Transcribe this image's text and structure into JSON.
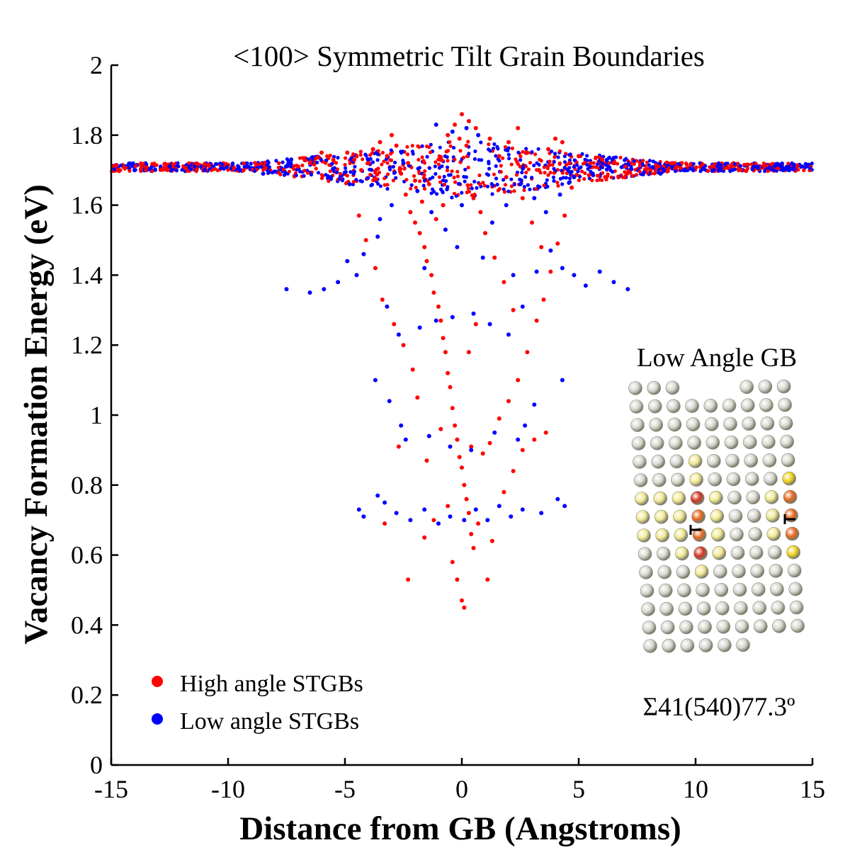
{
  "chart_data": {
    "type": "scatter",
    "title": "<100> Symmetric Tilt Grain Boundaries",
    "xlabel": "Distance from GB (Angstroms)",
    "ylabel": "Vacancy Formation Energy (eV)",
    "xlim": [
      -15,
      15
    ],
    "ylim": [
      0,
      2
    ],
    "xticks": [
      -15,
      -10,
      -5,
      0,
      5,
      10,
      15
    ],
    "xtick_labels": [
      "-15",
      "-10",
      "-5",
      "0",
      "5",
      "10",
      "15"
    ],
    "yticks": [
      0,
      0.2,
      0.4,
      0.6,
      0.8,
      1,
      1.2,
      1.4,
      1.6,
      1.8,
      2
    ],
    "ytick_labels": [
      "0",
      "0.2",
      "0.4",
      "0.6",
      "0.8",
      "1",
      "1.2",
      "1.4",
      "1.6",
      "1.8",
      "2"
    ],
    "bulk_energy": 1.71,
    "series": [
      {
        "name": "High angle STGBs",
        "color": "#ff0000",
        "points": [
          [
            -4.9,
            1.75
          ],
          [
            -4.6,
            1.73
          ],
          [
            -4.3,
            1.7
          ],
          [
            -4.0,
            1.72
          ],
          [
            -3.8,
            1.76
          ],
          [
            -3.5,
            1.78
          ],
          [
            -3.2,
            1.74
          ],
          [
            -3.0,
            1.8
          ],
          [
            -2.8,
            1.77
          ],
          [
            -2.6,
            1.69
          ],
          [
            -2.4,
            1.63
          ],
          [
            -2.2,
            1.58
          ],
          [
            -2.0,
            1.55
          ],
          [
            -1.8,
            1.52
          ],
          [
            -1.6,
            1.48
          ],
          [
            -1.5,
            1.44
          ],
          [
            -1.3,
            1.4
          ],
          [
            -1.2,
            1.35
          ],
          [
            -1.0,
            1.31
          ],
          [
            -0.9,
            1.27
          ],
          [
            -0.8,
            1.22
          ],
          [
            -0.7,
            1.18
          ],
          [
            -0.6,
            1.12
          ],
          [
            -0.5,
            1.08
          ],
          [
            -0.4,
            1.02
          ],
          [
            -0.3,
            0.97
          ],
          [
            -0.2,
            0.93
          ],
          [
            -0.1,
            0.88
          ],
          [
            0.0,
            0.85
          ],
          [
            0.1,
            0.8
          ],
          [
            0.2,
            0.76
          ],
          [
            0.3,
            0.72
          ],
          [
            0.4,
            0.66
          ],
          [
            0.5,
            0.62
          ],
          [
            -0.4,
            0.58
          ],
          [
            -0.2,
            0.53
          ],
          [
            0.0,
            0.47
          ],
          [
            0.1,
            0.45
          ],
          [
            -2.3,
            0.53
          ],
          [
            -1.6,
            0.65
          ],
          [
            -1.2,
            0.7
          ],
          [
            -0.6,
            0.74
          ],
          [
            0.7,
            0.69
          ],
          [
            1.1,
            0.53
          ],
          [
            1.3,
            0.64
          ],
          [
            1.8,
            0.78
          ],
          [
            2.2,
            0.84
          ],
          [
            2.6,
            0.9
          ],
          [
            3.1,
            0.93
          ],
          [
            -2.7,
            0.91
          ],
          [
            -3.3,
            0.69
          ],
          [
            0.9,
            0.89
          ],
          [
            1.6,
            0.99
          ],
          [
            2.0,
            1.04
          ],
          [
            2.4,
            1.1
          ],
          [
            2.8,
            1.18
          ],
          [
            3.2,
            1.27
          ],
          [
            3.5,
            1.33
          ],
          [
            3.8,
            1.41
          ],
          [
            4.1,
            1.49
          ],
          [
            4.4,
            1.57
          ],
          [
            4.7,
            1.65
          ],
          [
            -1.9,
            1.05
          ],
          [
            -2.1,
            1.13
          ],
          [
            -2.5,
            1.2
          ],
          [
            -2.9,
            1.26
          ],
          [
            -3.4,
            1.33
          ],
          [
            -3.7,
            1.42
          ],
          [
            -4.1,
            1.5
          ],
          [
            -4.4,
            1.57
          ],
          [
            0.0,
            1.86
          ],
          [
            -0.3,
            1.83
          ],
          [
            0.3,
            1.84
          ],
          [
            -0.1,
            1.79
          ],
          [
            0.2,
            1.77
          ],
          [
            0.6,
            1.82
          ],
          [
            -0.6,
            1.8
          ],
          [
            1.2,
            1.79
          ],
          [
            1.6,
            1.74
          ],
          [
            2.0,
            1.78
          ],
          [
            2.4,
            1.82
          ],
          [
            2.8,
            1.75
          ],
          [
            3.3,
            1.7
          ],
          [
            3.7,
            1.76
          ],
          [
            4.0,
            1.79
          ],
          [
            4.3,
            1.78
          ],
          [
            4.6,
            1.72
          ],
          [
            5.0,
            1.74
          ],
          [
            5.5,
            1.72
          ],
          [
            6.0,
            1.73
          ],
          [
            6.5,
            1.72
          ],
          [
            7.0,
            1.71
          ],
          [
            -5.5,
            1.73
          ],
          [
            -6.0,
            1.75
          ],
          [
            -6.5,
            1.72
          ],
          [
            -7.0,
            1.71
          ],
          [
            1.0,
            1.52
          ],
          [
            1.4,
            1.45
          ],
          [
            1.8,
            1.38
          ],
          [
            2.2,
            1.3
          ],
          [
            0.5,
            1.62
          ],
          [
            0.8,
            1.58
          ],
          [
            -0.8,
            1.6
          ],
          [
            -1.1,
            1.56
          ],
          [
            2.6,
            1.62
          ],
          [
            3.0,
            1.55
          ],
          [
            3.4,
            1.48
          ],
          [
            -1.4,
            1.66
          ],
          [
            -1.7,
            1.61
          ],
          [
            -2.0,
            1.67
          ],
          [
            -2.3,
            1.72
          ],
          [
            1.9,
            1.68
          ],
          [
            0.6,
            1.26
          ],
          [
            0.3,
            1.18
          ],
          [
            -0.9,
            0.96
          ],
          [
            1.2,
            0.92
          ],
          [
            -1.5,
            0.87
          ],
          [
            0.4,
            0.91
          ],
          [
            3.6,
            0.95
          ]
        ]
      },
      {
        "name": "Low angle STGBs",
        "color": "#0000ff",
        "points": [
          [
            -7.5,
            1.36
          ],
          [
            -6.5,
            1.35
          ],
          [
            -5.9,
            1.36
          ],
          [
            -5.3,
            1.38
          ],
          [
            -4.9,
            1.44
          ],
          [
            -4.5,
            1.4
          ],
          [
            -4.2,
            1.46
          ],
          [
            -3.6,
            1.51
          ],
          [
            -3.2,
            1.31
          ],
          [
            -2.7,
            1.23
          ],
          [
            -1.8,
            1.25
          ],
          [
            -1.1,
            1.27
          ],
          [
            -0.4,
            1.28
          ],
          [
            0.5,
            1.29
          ],
          [
            1.2,
            1.26
          ],
          [
            2.0,
            1.23
          ],
          [
            2.6,
            1.31
          ],
          [
            3.2,
            1.41
          ],
          [
            3.8,
            1.47
          ],
          [
            4.3,
            1.42
          ],
          [
            4.8,
            1.4
          ],
          [
            5.3,
            1.37
          ],
          [
            5.9,
            1.41
          ],
          [
            6.5,
            1.38
          ],
          [
            7.1,
            1.36
          ],
          [
            -4.4,
            0.73
          ],
          [
            -4.2,
            0.71
          ],
          [
            -3.6,
            0.77
          ],
          [
            -3.3,
            0.75
          ],
          [
            -2.8,
            0.72
          ],
          [
            -2.2,
            0.7
          ],
          [
            -1.6,
            0.73
          ],
          [
            -1.0,
            0.69
          ],
          [
            -0.5,
            0.71
          ],
          [
            0.1,
            0.7
          ],
          [
            0.6,
            0.73
          ],
          [
            1.1,
            0.7
          ],
          [
            1.6,
            0.74
          ],
          [
            2.1,
            0.71
          ],
          [
            2.6,
            0.73
          ],
          [
            3.4,
            0.72
          ],
          [
            4.1,
            0.76
          ],
          [
            4.4,
            0.74
          ],
          [
            -3.7,
            1.1
          ],
          [
            4.3,
            1.1
          ],
          [
            -3.1,
            1.04
          ],
          [
            3.1,
            1.03
          ],
          [
            -2.4,
            0.93
          ],
          [
            2.4,
            0.93
          ],
          [
            -1.4,
            0.94
          ],
          [
            1.4,
            0.95
          ],
          [
            -0.5,
            0.91
          ],
          [
            0.4,
            0.9
          ],
          [
            -2.6,
            0.97
          ],
          [
            2.7,
            0.97
          ],
          [
            -1.1,
            1.83
          ],
          [
            -0.4,
            1.81
          ],
          [
            0.2,
            1.82
          ],
          [
            0.7,
            1.8
          ],
          [
            -2.5,
            1.72
          ],
          [
            -1.9,
            1.64
          ],
          [
            -1.3,
            1.58
          ],
          [
            -0.7,
            1.53
          ],
          [
            1.3,
            1.55
          ],
          [
            1.9,
            1.6
          ],
          [
            2.5,
            1.66
          ],
          [
            3.1,
            1.62
          ],
          [
            -3.0,
            1.6
          ],
          [
            -3.5,
            1.56
          ],
          [
            3.6,
            1.58
          ],
          [
            4.2,
            1.63
          ],
          [
            4.8,
            1.68
          ],
          [
            -4.8,
            1.66
          ],
          [
            -5.6,
            1.68
          ],
          [
            5.6,
            1.69
          ],
          [
            -8.5,
            1.69
          ],
          [
            -9.5,
            1.7
          ],
          [
            -11.0,
            1.7
          ],
          [
            -12.5,
            1.71
          ],
          [
            -14.0,
            1.7
          ],
          [
            8.5,
            1.69
          ],
          [
            9.5,
            1.7
          ],
          [
            11.0,
            1.7
          ],
          [
            12.5,
            1.71
          ],
          [
            14.0,
            1.7
          ],
          [
            0.0,
            1.6
          ],
          [
            -0.2,
            1.48
          ],
          [
            0.9,
            1.45
          ],
          [
            -1.6,
            1.42
          ],
          [
            2.2,
            1.4
          ]
        ]
      }
    ],
    "inset": {
      "title": "Low Angle GB",
      "caption": "Σ41(540)77.3º",
      "description_label": "atomic structure"
    }
  },
  "legend": {
    "items": [
      "High angle STGBs",
      "Low angle STGBs"
    ],
    "colors": [
      "#ff0000",
      "#0000ff"
    ]
  },
  "colors": {
    "axis": "#000000",
    "background": "#ffffff",
    "atom_bulk": "#d8d8d0",
    "atom_near": "#f0e890",
    "atom_gb_yellow": "#f2d21a",
    "atom_gb_orange": "#e8671e",
    "atom_gb_red": "#d4321c"
  }
}
